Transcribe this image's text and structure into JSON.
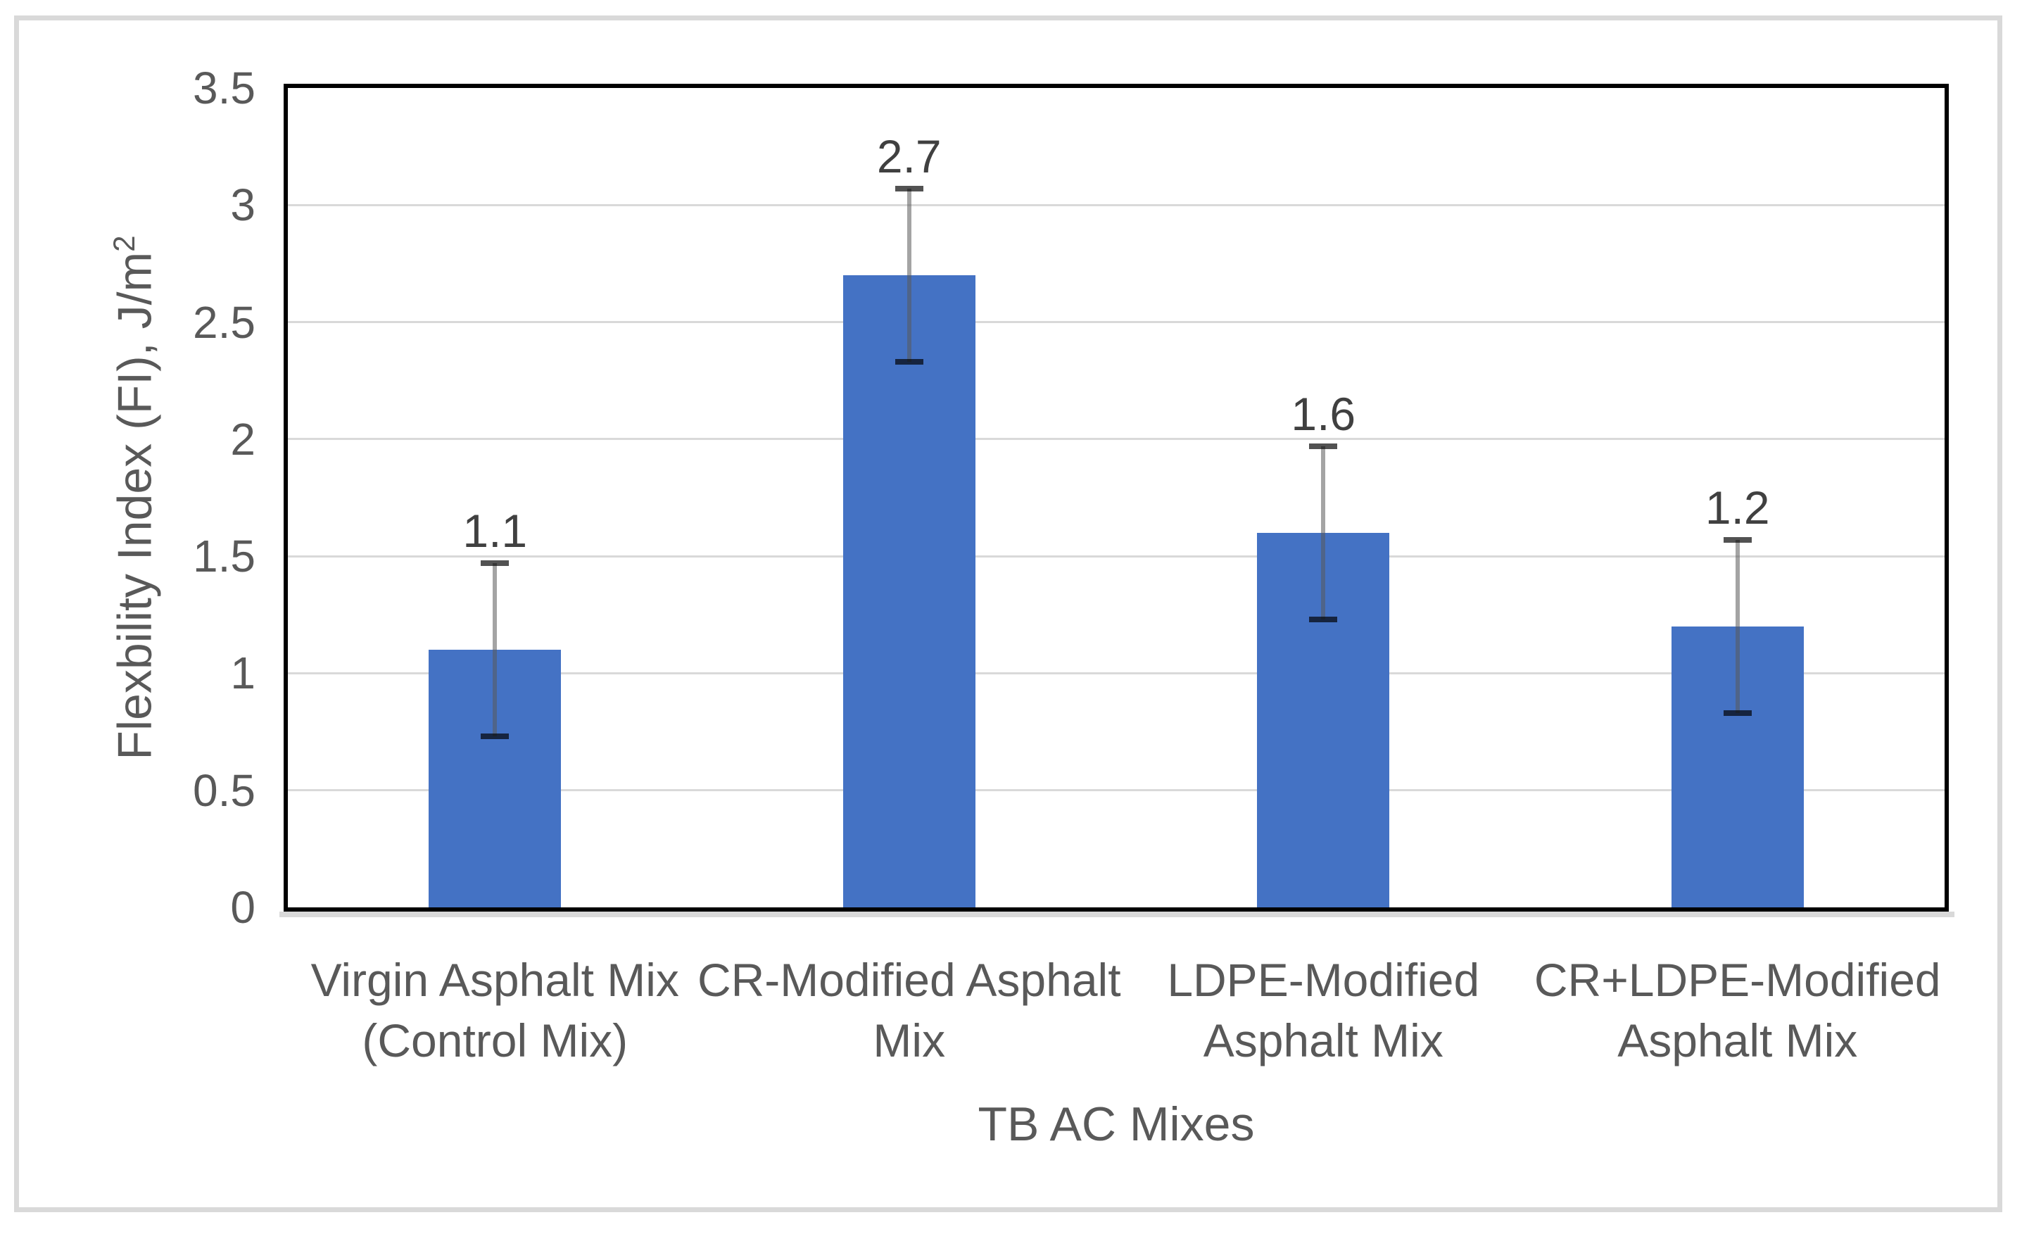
{
  "chart_data": {
    "type": "bar",
    "title": "",
    "categories": [
      "Virgin Asphalt Mix (Control Mix)",
      "CR-Modified Asphalt Mix",
      "LDPE-Modified Asphalt Mix",
      "CR+LDPE-Modified Asphalt Mix"
    ],
    "category_lines": [
      [
        "Virgin Asphalt Mix",
        "(Control Mix)"
      ],
      [
        "CR-Modified Asphalt",
        "Mix"
      ],
      [
        "LDPE-Modified",
        "Asphalt Mix"
      ],
      [
        "CR+LDPE-Modified",
        "Asphalt Mix"
      ]
    ],
    "values": [
      1.1,
      2.7,
      1.6,
      1.2
    ],
    "data_labels": [
      "1.1",
      "2.7",
      "1.6",
      "1.2"
    ],
    "error_upper": [
      1.47,
      3.07,
      1.97,
      1.57
    ],
    "error_lower": [
      0.73,
      2.33,
      1.23,
      0.83
    ],
    "xlabel": "TB AC Mixes",
    "ylabel_main": "Flexbility Index (FI), J/m",
    "ylabel_superscript": "2",
    "ylim": [
      0,
      3.5
    ],
    "ytick_labels": [
      "3.5",
      "3",
      "2.5",
      "2",
      "1.5",
      "1",
      "0.5",
      "0"
    ],
    "grid": true,
    "legend": false,
    "colors": {
      "bar": "#4472C4",
      "gridline": "#D9D9D9",
      "axis_text": "#595959",
      "data_label_text": "#404040",
      "plot_border": "#000000",
      "figure_border": "#D9D9D9",
      "axis_line": "#D9D9D9",
      "error_stem": "rgba(89,89,89,0.55)",
      "error_cap": "rgba(0,0,0,0.68)"
    }
  }
}
